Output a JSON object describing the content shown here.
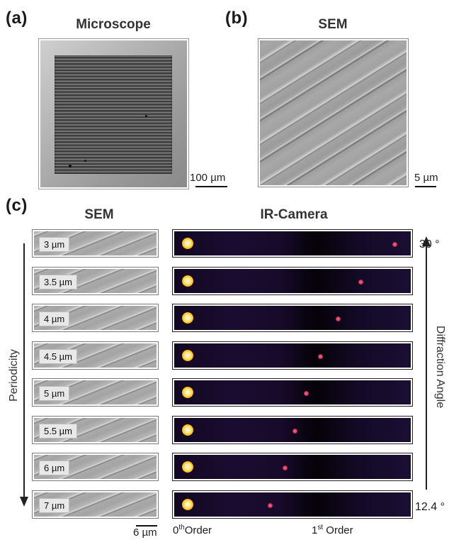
{
  "panel_a": {
    "letter": "(a)",
    "title": "Microscope",
    "scale": "100 µm"
  },
  "panel_b": {
    "letter": "(b)",
    "title": "SEM",
    "scale": "5 µm"
  },
  "panel_c": {
    "letter": "(c)",
    "sem_title": "SEM",
    "ir_title": "IR-Camera",
    "periodicity_label": "Periodicity",
    "diffraction_label": "Diffraction Angle",
    "angle_top": "30 °",
    "angle_bottom": "12.4 °",
    "sem_scale": "6 µm",
    "order0_base": "0",
    "order0_sup": "th",
    "order0_rest": "Order",
    "order1_base": "1",
    "order1_sup": "st",
    "order1_rest": " Order",
    "rows": [
      {
        "period": "3 µm",
        "first_order_fraction": 0.923
      },
      {
        "period": "3.5 µm",
        "first_order_fraction": 0.782
      },
      {
        "period": "4 µm",
        "first_order_fraction": 0.686
      },
      {
        "period": "4.5 µm",
        "first_order_fraction": 0.612
      },
      {
        "period": "5 µm",
        "first_order_fraction": 0.554
      },
      {
        "period": "5.5 µm",
        "first_order_fraction": 0.506
      },
      {
        "period": "6 µm",
        "first_order_fraction": 0.465
      },
      {
        "period": "7 µm",
        "first_order_fraction": 0.402
      }
    ]
  }
}
